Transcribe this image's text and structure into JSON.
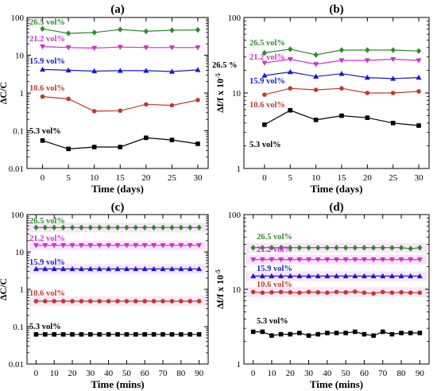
{
  "figure": {
    "colors": {
      "26.5 vol%": "#2e8b2e",
      "21.2 vol%": "#cc33cc",
      "15.9 vol%": "#1a1acc",
      "10.6 vol%": "#c0392b",
      "5.3 vol%": "#000000"
    },
    "band_color": "#f3c6f3"
  },
  "chart_data": [
    {
      "id": "a",
      "title": "(a)",
      "type": "line",
      "xlabel": "Time (days)",
      "ylabel": "ΔC/C",
      "xlim": [
        -3,
        32
      ],
      "xticks": [
        0,
        5,
        10,
        15,
        20,
        25,
        30
      ],
      "yscale": "log",
      "ylim": [
        0.01,
        100
      ],
      "yticks": [
        0.01,
        0.1,
        1,
        10,
        100
      ],
      "yticklabels": [
        "0.01",
        "0.1",
        "1",
        "10",
        "100"
      ],
      "x": [
        0,
        5,
        10,
        15,
        20,
        25,
        30
      ],
      "series": [
        {
          "name": "26.5 vol%",
          "marker": "diamond",
          "values": [
            50,
            38,
            40,
            48,
            43,
            46,
            47
          ]
        },
        {
          "name": "21.2 vol%",
          "marker": "tri-down",
          "values": [
            17,
            16,
            15.5,
            16.5,
            16,
            16,
            16
          ]
        },
        {
          "name": "15.9 vol%",
          "marker": "tri-up",
          "values": [
            4.2,
            4.0,
            3.8,
            3.9,
            3.9,
            3.7,
            4.1
          ]
        },
        {
          "name": "10.6 vol%",
          "marker": "circle",
          "values": [
            0.8,
            0.7,
            0.33,
            0.34,
            0.5,
            0.47,
            0.65
          ]
        },
        {
          "name": "5.3 vol%",
          "marker": "square",
          "values": [
            0.055,
            0.033,
            0.037,
            0.037,
            0.065,
            0.057,
            0.045
          ]
        }
      ],
      "labels": [
        {
          "text": "26.5 vol%",
          "series": "26.5 vol%"
        },
        {
          "text": "21.2 vol%",
          "series": "21.2 vol%"
        },
        {
          "text": "15.9 vol%",
          "series": "15.9 vol%"
        },
        {
          "text": "10.6 vol%",
          "series": "10.6 vol%"
        },
        {
          "text": "5.3 vol%",
          "series": "5.3 vol%"
        }
      ]
    },
    {
      "id": "b",
      "title": "(b)",
      "type": "line",
      "xlabel": "Time (days)",
      "ylabel": "Δf/f x 10",
      "ylabel_sup": "-5",
      "xlim": [
        -4,
        32
      ],
      "xticks": [
        0,
        5,
        10,
        15,
        20,
        25,
        30
      ],
      "yscale": "log",
      "ylim": [
        1,
        100
      ],
      "yticks": [
        1,
        10,
        100
      ],
      "yticklabels": [
        "1",
        "10",
        "100"
      ],
      "x": [
        0,
        5,
        10,
        15,
        20,
        25,
        30
      ],
      "series": [
        {
          "name": "26.5 vol%",
          "marker": "diamond",
          "values": [
            34,
            38,
            32,
            37,
            37,
            37,
            36
          ]
        },
        {
          "name": "21.2 vol%",
          "marker": "tri-down",
          "values": [
            25,
            28,
            24,
            27,
            27,
            28,
            27
          ]
        },
        {
          "name": "15.9 vol%",
          "marker": "tri-up",
          "values": [
            17,
            19,
            16.5,
            18,
            16,
            15.5,
            16
          ]
        },
        {
          "name": "10.6 vol%",
          "marker": "circle",
          "values": [
            9.5,
            11.5,
            11,
            11.5,
            10,
            10,
            10.5
          ]
        },
        {
          "name": "5.3 vol%",
          "marker": "square",
          "values": [
            3.8,
            5.9,
            4.4,
            5.0,
            4.7,
            4.0,
            3.7
          ]
        }
      ],
      "labels": [
        {
          "text": "26.5 vol%",
          "series": "26.5 vol%"
        },
        {
          "text": "21.2 vol%",
          "series": "21.2 vol%"
        },
        {
          "text": "15.9 vol%",
          "series": "15.9 vol%"
        },
        {
          "text": "10.6 vol%",
          "series": "10.6 vol%"
        },
        {
          "text": "5.3 vol%",
          "series": "5.3 vol%"
        },
        {
          "text": "26.5 %",
          "series": "5.3 vol%"
        }
      ]
    },
    {
      "id": "c",
      "title": "(c)",
      "type": "line",
      "xlabel": "Time (mins)",
      "ylabel": "ΔC/C",
      "xlim": [
        -5,
        95
      ],
      "xticks": [
        0,
        10,
        20,
        30,
        40,
        50,
        60,
        70,
        80,
        90
      ],
      "yscale": "log",
      "ylim": [
        0.01,
        100
      ],
      "yticks": [
        0.01,
        0.1,
        1,
        10,
        100
      ],
      "yticklabels": [
        "0.01",
        "0.1",
        "1",
        "10",
        "100"
      ],
      "x": [
        0,
        5,
        10,
        15,
        20,
        25,
        30,
        35,
        40,
        45,
        50,
        55,
        60,
        65,
        70,
        75,
        80,
        85,
        90
      ],
      "series": [
        {
          "name": "26.5 vol%",
          "marker": "diamond",
          "values": [
            45,
            45,
            45,
            45,
            45,
            45,
            45,
            45,
            45,
            45,
            45,
            45,
            45,
            45,
            45,
            45,
            45,
            45,
            45
          ]
        },
        {
          "name": "21.2 vol%",
          "marker": "tri-down",
          "values": [
            15,
            15,
            15,
            15,
            15,
            15,
            15,
            15,
            15,
            15,
            15,
            15,
            15,
            15,
            15,
            15,
            15,
            15,
            15
          ]
        },
        {
          "name": "15.9 vol%",
          "marker": "tri-up",
          "values": [
            3.5,
            3.5,
            3.5,
            3.5,
            3.5,
            3.5,
            3.5,
            3.5,
            3.5,
            3.5,
            3.5,
            3.5,
            3.5,
            3.5,
            3.5,
            3.5,
            3.5,
            3.5,
            3.5
          ]
        },
        {
          "name": "10.6 vol%",
          "marker": "circle",
          "values": [
            0.48,
            0.48,
            0.48,
            0.48,
            0.48,
            0.48,
            0.48,
            0.48,
            0.48,
            0.48,
            0.48,
            0.48,
            0.48,
            0.48,
            0.48,
            0.48,
            0.48,
            0.48,
            0.48
          ]
        },
        {
          "name": "5.3 vol%",
          "marker": "square",
          "values": [
            0.062,
            0.062,
            0.062,
            0.062,
            0.062,
            0.062,
            0.062,
            0.062,
            0.062,
            0.062,
            0.062,
            0.062,
            0.062,
            0.062,
            0.062,
            0.062,
            0.062,
            0.062,
            0.062
          ]
        }
      ],
      "labels": [
        {
          "text": "26.5 vol%",
          "series": "26.5 vol%"
        },
        {
          "text": "21.2 vol%",
          "series": "21.2 vol%"
        },
        {
          "text": "15.9 vol%",
          "series": "15.9 vol%"
        },
        {
          "text": "10.6 vol%",
          "series": "10.6 vol%"
        },
        {
          "text": "5.3 vol%",
          "series": "5.3 vol%"
        }
      ]
    },
    {
      "id": "d",
      "title": "(d)",
      "type": "line",
      "xlabel": "Time (mins)",
      "ylabel": "Δf/f x 10",
      "ylabel_sup": "-5",
      "xlim": [
        -5,
        95
      ],
      "xticks": [
        0,
        10,
        20,
        30,
        40,
        50,
        60,
        70,
        80,
        90
      ],
      "yscale": "log",
      "ylim": [
        1,
        100
      ],
      "yticks": [
        1,
        10,
        100
      ],
      "yticklabels": [
        "1",
        "10",
        "100"
      ],
      "x": [
        0,
        5,
        10,
        15,
        20,
        25,
        30,
        35,
        40,
        45,
        50,
        55,
        60,
        65,
        70,
        75,
        80,
        85,
        90
      ],
      "series": [
        {
          "name": "26.5 vol%",
          "marker": "diamond",
          "values": [
            36,
            36,
            36,
            36,
            36,
            36,
            36,
            36,
            36,
            36,
            36,
            36,
            36,
            36,
            36,
            36,
            36,
            35,
            36
          ]
        },
        {
          "name": "21.2 vol%",
          "marker": "tri-down",
          "values": [
            25,
            25,
            25,
            25,
            25,
            25,
            25,
            25,
            25,
            25,
            25,
            25,
            25,
            25,
            25,
            25,
            25,
            25,
            25
          ]
        },
        {
          "name": "15.9 vol%",
          "marker": "tri-up",
          "values": [
            15,
            15,
            15,
            15,
            15,
            15,
            15,
            15,
            15,
            15,
            15,
            15,
            15,
            15,
            15,
            15,
            15,
            15,
            15
          ]
        },
        {
          "name": "10.6 vol%",
          "marker": "circle",
          "values": [
            9.2,
            9.0,
            9.1,
            9.2,
            9.1,
            9.0,
            9.2,
            9.1,
            9.0,
            9.2,
            9.1,
            9.3,
            9.0,
            8.8,
            9.2,
            9.0,
            9.1,
            9.0,
            9.0
          ]
        },
        {
          "name": "5.3 vol%",
          "marker": "square",
          "values": [
            2.7,
            2.7,
            2.4,
            2.5,
            2.5,
            2.6,
            2.4,
            2.5,
            2.6,
            2.6,
            2.6,
            2.7,
            2.5,
            2.4,
            2.7,
            2.5,
            2.6,
            2.6,
            2.6
          ]
        }
      ],
      "labels": [
        {
          "text": "26.5 vol%",
          "series": "26.5 vol%"
        },
        {
          "text": "21.2 vol%",
          "series": "21.2 vol%"
        },
        {
          "text": "15.9 vol%",
          "series": "15.9 vol%"
        },
        {
          "text": "10.6 vol%",
          "series": "10.6 vol%"
        },
        {
          "text": "5.3 vol%",
          "series": "5.3 vol%"
        }
      ]
    }
  ]
}
